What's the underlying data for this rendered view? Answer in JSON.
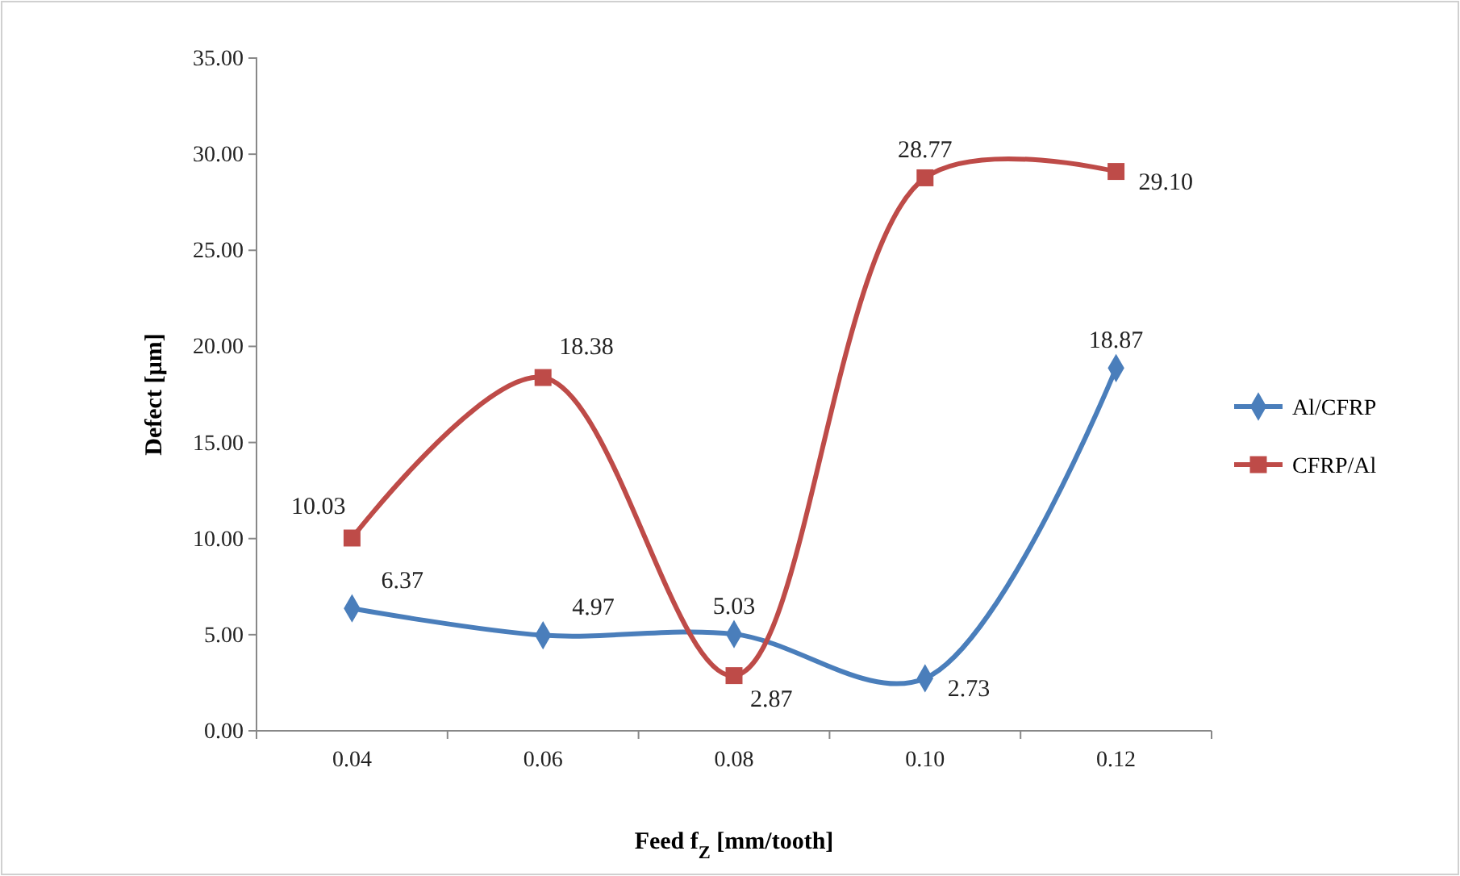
{
  "chart_data": {
    "type": "line",
    "xlabel": "Feed f$_{Z}$ [mm/tooth]",
    "ylabel": "Defect [µm]",
    "categories": [
      "0.04",
      "0.06",
      "0.08",
      "0.10",
      "0.12"
    ],
    "ylim": [
      0,
      35
    ],
    "yticks": [
      {
        "value": 0,
        "label": "0.00"
      },
      {
        "value": 5,
        "label": "5.00"
      },
      {
        "value": 10,
        "label": "10.00"
      },
      {
        "value": 15,
        "label": "15.00"
      },
      {
        "value": 20,
        "label": "20.00"
      },
      {
        "value": 25,
        "label": "25.00"
      },
      {
        "value": 30,
        "label": "30.00"
      },
      {
        "value": 35,
        "label": "35.00"
      }
    ],
    "series": [
      {
        "name": "Al/CFRP",
        "color": "#4a7ebb",
        "marker": "diamond",
        "values": [
          6.37,
          4.97,
          5.03,
          2.73,
          18.87
        ],
        "value_labels": [
          "6.37",
          "4.97",
          "5.03",
          "2.73",
          "18.87"
        ]
      },
      {
        "name": "CFRP/Al",
        "color": "#be4b48",
        "marker": "square",
        "values": [
          10.03,
          18.38,
          2.87,
          28.77,
          29.1
        ],
        "value_labels": [
          "10.03",
          "18.38",
          "2.87",
          "28.77",
          "29.10"
        ]
      }
    ],
    "legend": "right",
    "grid": false,
    "line_style": "solid"
  }
}
